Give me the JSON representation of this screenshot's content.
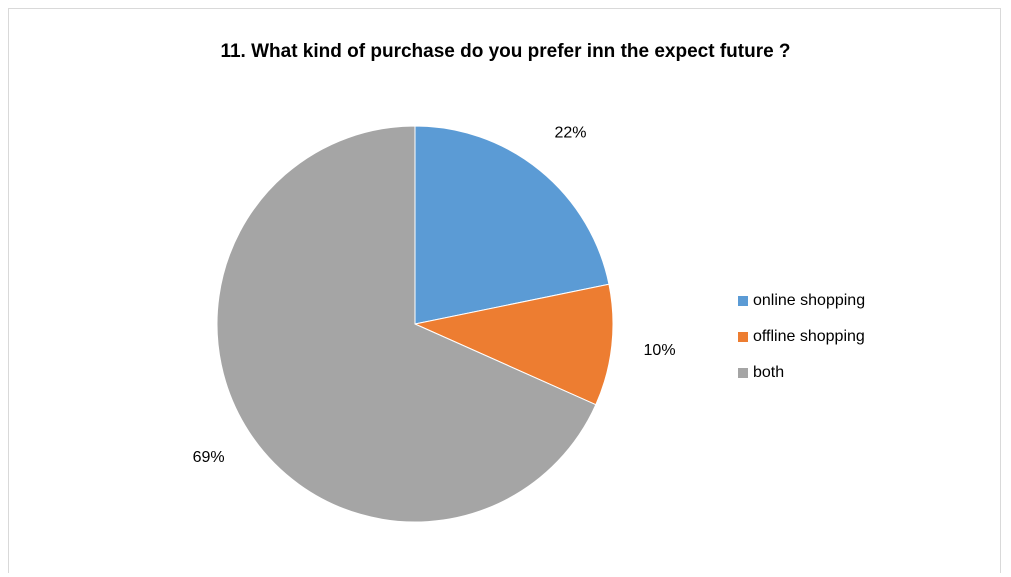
{
  "chart_data": {
    "type": "pie",
    "title": "11. What kind of purchase do you prefer inn the expect future ?",
    "categories": [
      "online shopping",
      "offline shopping",
      "both"
    ],
    "values": [
      22,
      10,
      69
    ],
    "labels": [
      "22%",
      "10%",
      "69%"
    ],
    "colors": [
      "#5b9bd5",
      "#ed7d31",
      "#a5a5a5"
    ],
    "legend_position": "right"
  }
}
